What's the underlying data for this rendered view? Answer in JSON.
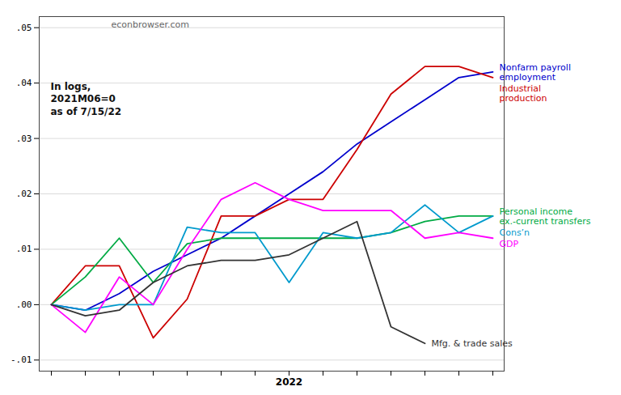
{
  "chart_data": {
    "type": "line",
    "categories": [
      null,
      null,
      null,
      null,
      null,
      null,
      null,
      "2022",
      null,
      null,
      null,
      null,
      null,
      null
    ],
    "series": [
      {
        "name": "Nonfarm payroll\nemployment",
        "color": "#0000CC",
        "values": [
          0.0,
          -0.001,
          0.002,
          0.006,
          0.009,
          0.012,
          0.016,
          0.02,
          0.024,
          0.029,
          0.033,
          0.037,
          0.041,
          0.042
        ]
      },
      {
        "name": "Industrial\nproduction",
        "color": "#CC0000",
        "values": [
          0.0,
          0.007,
          0.007,
          -0.006,
          0.001,
          0.016,
          0.016,
          0.019,
          0.019,
          0.028,
          0.038,
          0.043,
          0.043,
          0.041
        ]
      },
      {
        "name": "Personal income\nex.-current transfers",
        "color": "#00AA44",
        "values": [
          0.0,
          0.005,
          0.012,
          0.004,
          0.011,
          0.012,
          0.012,
          0.012,
          0.012,
          0.012,
          0.013,
          0.015,
          0.016,
          0.016
        ]
      },
      {
        "name": "Cons’n",
        "color": "#009ACD",
        "values": [
          0.0,
          -0.001,
          0.0,
          0.0,
          0.014,
          0.013,
          0.013,
          0.004,
          0.013,
          0.012,
          0.013,
          0.018,
          0.013,
          0.016
        ]
      },
      {
        "name": "GDP",
        "color": "#FF00FF",
        "values": [
          0.0,
          -0.005,
          0.005,
          0.0,
          0.01,
          0.019,
          0.022,
          0.019,
          0.017,
          0.017,
          0.017,
          0.012,
          0.013,
          0.012
        ]
      },
      {
        "name": "Mfg. & trade sales",
        "color": "#333333",
        "values": [
          0.0,
          -0.002,
          -0.001,
          0.004,
          0.007,
          0.008,
          0.008,
          0.009,
          0.012,
          0.015,
          -0.004,
          -0.007,
          null,
          null
        ]
      }
    ],
    "ylim": [
      -0.012,
      0.052
    ],
    "yticks": [
      {
        "value": -0.01,
        "label": "-.01"
      },
      {
        "value": 0.0,
        "label": ".00"
      },
      {
        "value": 0.01,
        "label": ".01"
      },
      {
        "value": 0.02,
        "label": ".02"
      },
      {
        "value": 0.03,
        "label": ".03"
      },
      {
        "value": 0.04,
        "label": ".04"
      },
      {
        "value": 0.05,
        "label": ".05"
      }
    ],
    "grid": true,
    "annotations": [
      "econbrowser.com",
      "In logs,\n2021M06=0\nas of 7/15/22"
    ]
  }
}
